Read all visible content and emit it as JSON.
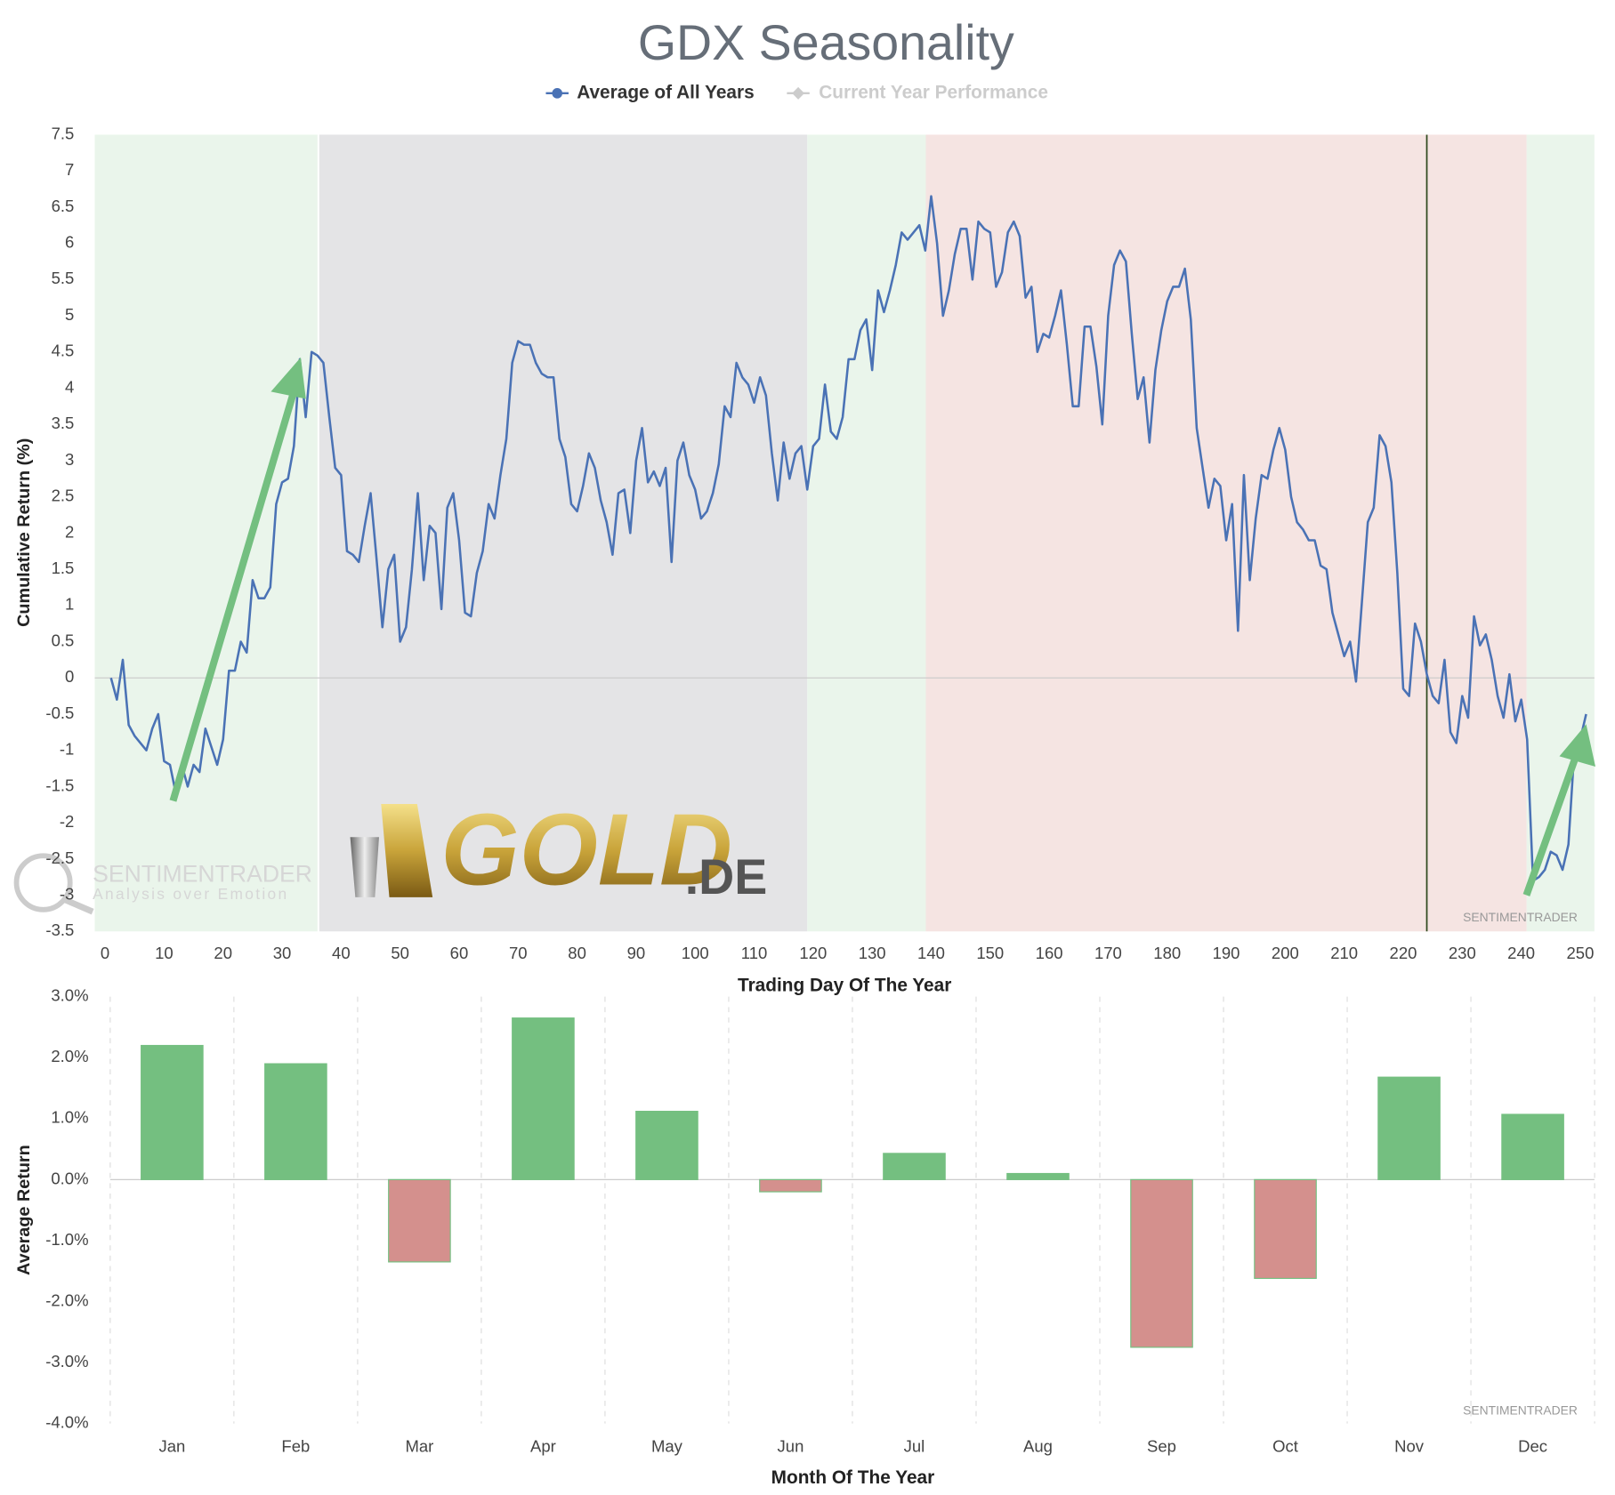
{
  "chart_data": [
    {
      "type": "line",
      "title": "GDX Seasonality",
      "x_label": "Trading Day Of The Year",
      "y_label": "Cumulative Return (%)",
      "series": [
        {
          "name": "Average of All Years",
          "color": "#4a72b5",
          "values": [
            0,
            -0.3,
            0.25,
            -0.65,
            -0.8,
            -0.9,
            -1.0,
            -0.7,
            -0.5,
            -1.15,
            -1.2,
            -1.6,
            -1.2,
            -1.5,
            -1.2,
            -1.3,
            -0.7,
            -0.95,
            -1.2,
            -0.85,
            0.1,
            0.1,
            0.5,
            0.35,
            1.35,
            1.1,
            1.1,
            1.25,
            2.4,
            2.7,
            2.75,
            3.2,
            4.4,
            3.6,
            4.5,
            4.45,
            4.35,
            3.6,
            2.9,
            2.8,
            1.75,
            1.7,
            1.6,
            2.1,
            2.55,
            1.65,
            0.7,
            1.5,
            1.7,
            0.5,
            0.7,
            1.5,
            2.55,
            1.35,
            2.1,
            2.0,
            0.95,
            2.35,
            2.55,
            1.9,
            0.9,
            0.85,
            1.45,
            1.75,
            2.4,
            2.2,
            2.8,
            3.3,
            4.35,
            4.65,
            4.6,
            4.6,
            4.35,
            4.2,
            4.15,
            4.15,
            3.3,
            3.05,
            2.4,
            2.3,
            2.65,
            3.1,
            2.9,
            2.45,
            2.15,
            1.7,
            2.55,
            2.6,
            2.0,
            3.0,
            3.45,
            2.7,
            2.85,
            2.65,
            2.9,
            1.6,
            3.0,
            3.25,
            2.8,
            2.6,
            2.2,
            2.3,
            2.55,
            2.95,
            3.75,
            3.6,
            4.35,
            4.15,
            4.05,
            3.8,
            4.15,
            3.9,
            3.1,
            2.45,
            3.25,
            2.75,
            3.1,
            3.2,
            2.6,
            3.2,
            3.3,
            4.05,
            3.4,
            3.3,
            3.6,
            4.4,
            4.4,
            4.8,
            4.95,
            4.25,
            5.35,
            5.05,
            5.35,
            5.7,
            6.15,
            6.05,
            6.15,
            6.25,
            5.9,
            6.65,
            6.0,
            5.0,
            5.35,
            5.85,
            6.2,
            6.2,
            5.5,
            6.3,
            6.2,
            6.15,
            5.4,
            5.6,
            6.15,
            6.3,
            6.1,
            5.25,
            5.4,
            4.5,
            4.75,
            4.7,
            5.0,
            5.35,
            4.6,
            3.75,
            3.75,
            4.85,
            4.85,
            4.3,
            3.5,
            5.0,
            5.7,
            5.9,
            5.75,
            4.75,
            3.85,
            4.15,
            3.25,
            4.25,
            4.8,
            5.2,
            5.4,
            5.4,
            5.65,
            4.95,
            3.45,
            2.9,
            2.35,
            2.75,
            2.65,
            1.9,
            2.4,
            0.65,
            2.8,
            1.35,
            2.2,
            2.8,
            2.75,
            3.15,
            3.45,
            3.15,
            2.5,
            2.15,
            2.05,
            1.9,
            1.9,
            1.55,
            1.5,
            0.9,
            0.6,
            0.3,
            0.5,
            -0.05,
            1.05,
            2.15,
            2.35,
            3.35,
            3.2,
            2.7,
            1.45,
            -0.15,
            -0.25,
            0.75,
            0.5,
            0.05,
            -0.25,
            -0.35,
            0.25,
            -0.75,
            -0.9,
            -0.25,
            -0.55,
            0.85,
            0.45,
            0.6,
            0.25,
            -0.25,
            -0.55,
            0.05,
            -0.6,
            -0.3,
            -0.85,
            -2.8,
            -2.75,
            -2.65,
            -2.4,
            -2.45,
            -2.65,
            -2.3,
            -1.0,
            -0.85,
            -0.5
          ]
        }
      ],
      "inactive_series": [
        {
          "name": "Current Year Performance",
          "color": "#cccccc"
        }
      ],
      "x": [
        1,
        2,
        3,
        4,
        5,
        6,
        7,
        8,
        9,
        10,
        11,
        12,
        13,
        14,
        15,
        16,
        17,
        18,
        19,
        20,
        21,
        22,
        23,
        24,
        25,
        26,
        27,
        28,
        29,
        30,
        31,
        32,
        33,
        34,
        35,
        36,
        37,
        38,
        39,
        40,
        41,
        42,
        43,
        44,
        45,
        46,
        47,
        48,
        49,
        50,
        51,
        52,
        53,
        54,
        55,
        56,
        57,
        58,
        59,
        60,
        61,
        62,
        63,
        64,
        65,
        66,
        67,
        68,
        69,
        70,
        71,
        72,
        73,
        74,
        75,
        76,
        77,
        78,
        79,
        80,
        81,
        82,
        83,
        84,
        85,
        86,
        87,
        88,
        89,
        90,
        91,
        92,
        93,
        94,
        95,
        96,
        97,
        98,
        99,
        100,
        101,
        102,
        103,
        104,
        105,
        106,
        107,
        108,
        109,
        110,
        111,
        112,
        113,
        114,
        115,
        116,
        117,
        118,
        119,
        120,
        121,
        122,
        123,
        124,
        125,
        126,
        127,
        128,
        129,
        130,
        131,
        132,
        133,
        134,
        135,
        136,
        137,
        138,
        139,
        140,
        141,
        142,
        143,
        144,
        145,
        146,
        147,
        148,
        149,
        150,
        151,
        152,
        153,
        154,
        155,
        156,
        157,
        158,
        159,
        160,
        161,
        162,
        163,
        164,
        165,
        166,
        167,
        168,
        169,
        170,
        171,
        172,
        173,
        174,
        175,
        176,
        177,
        178,
        179,
        180,
        181,
        182,
        183,
        184,
        185,
        186,
        187,
        188,
        189,
        190,
        191,
        192,
        193,
        194,
        195,
        196,
        197,
        198,
        199,
        200,
        201,
        202,
        203,
        204,
        205,
        206,
        207,
        208,
        209,
        210,
        211,
        212,
        213,
        214,
        215,
        216,
        217,
        218,
        219,
        220,
        221,
        222,
        223,
        224,
        225,
        226,
        227,
        228,
        229,
        230,
        231,
        232,
        233,
        234,
        235,
        236,
        237,
        238,
        239,
        240,
        241,
        242,
        243,
        244,
        245,
        246,
        247,
        248,
        249,
        250,
        251
      ],
      "xlim": [
        -1.75,
        252.4
      ],
      "xticks": [
        0,
        10,
        20,
        30,
        40,
        50,
        60,
        70,
        80,
        90,
        100,
        110,
        120,
        130,
        140,
        150,
        160,
        170,
        180,
        190,
        200,
        210,
        220,
        230,
        240,
        250
      ],
      "ylim": [
        -3.5,
        7.5
      ],
      "yticks": [
        -3.5,
        -3,
        -2.5,
        -2,
        -1.5,
        -1,
        -0.5,
        0,
        0.5,
        1,
        1.5,
        2,
        2.5,
        3,
        3.5,
        4,
        4.5,
        5,
        5.5,
        6,
        6.5,
        7,
        7.5
      ],
      "bands": [
        {
          "from": -1.75,
          "to": 36,
          "color": "#eaf5eb"
        },
        {
          "from": 36.3,
          "to": 119,
          "color": "#e4e4e6"
        },
        {
          "from": 119,
          "to": 139.1,
          "color": "#eaf5eb"
        },
        {
          "from": 139.1,
          "to": 240.9,
          "color": "#f5e4e2"
        },
        {
          "from": 240.9,
          "to": 252.4,
          "color": "#eaf5eb"
        }
      ],
      "marker_x": 224,
      "watermark": "SENTIMENTRADER",
      "watermark_tagline": "Analysis over Emotion",
      "logo": "GOLD",
      "logo_suffix": ".DE",
      "watermark_corner": "SENTIMENTRADER"
    },
    {
      "type": "bar",
      "x_label": "Month Of The Year",
      "y_label": "Average Return",
      "categories": [
        "Jan",
        "Feb",
        "Mar",
        "Apr",
        "May",
        "Jun",
        "Jul",
        "Aug",
        "Sep",
        "Oct",
        "Nov",
        "Dec"
      ],
      "values": [
        2.2,
        1.9,
        -1.35,
        2.65,
        1.12,
        -0.2,
        0.43,
        0.1,
        -2.75,
        -1.62,
        1.68,
        1.07
      ],
      "positive_color": "#74bf80",
      "negative_color": "#d4908d",
      "ylim": [
        -4,
        3
      ],
      "yticks": [
        {
          "value": -4,
          "label": "-4.0%"
        },
        {
          "value": -3,
          "label": "-3.0%"
        },
        {
          "value": -2,
          "label": "-2.0%"
        },
        {
          "value": -1,
          "label": "-1.0%"
        },
        {
          "value": 0,
          "label": "0.0%"
        },
        {
          "value": 1,
          "label": "1.0%"
        },
        {
          "value": 2,
          "label": "2.0%"
        },
        {
          "value": 3,
          "label": "3.0%"
        }
      ],
      "watermark_corner": "SENTIMENTRADER"
    }
  ]
}
